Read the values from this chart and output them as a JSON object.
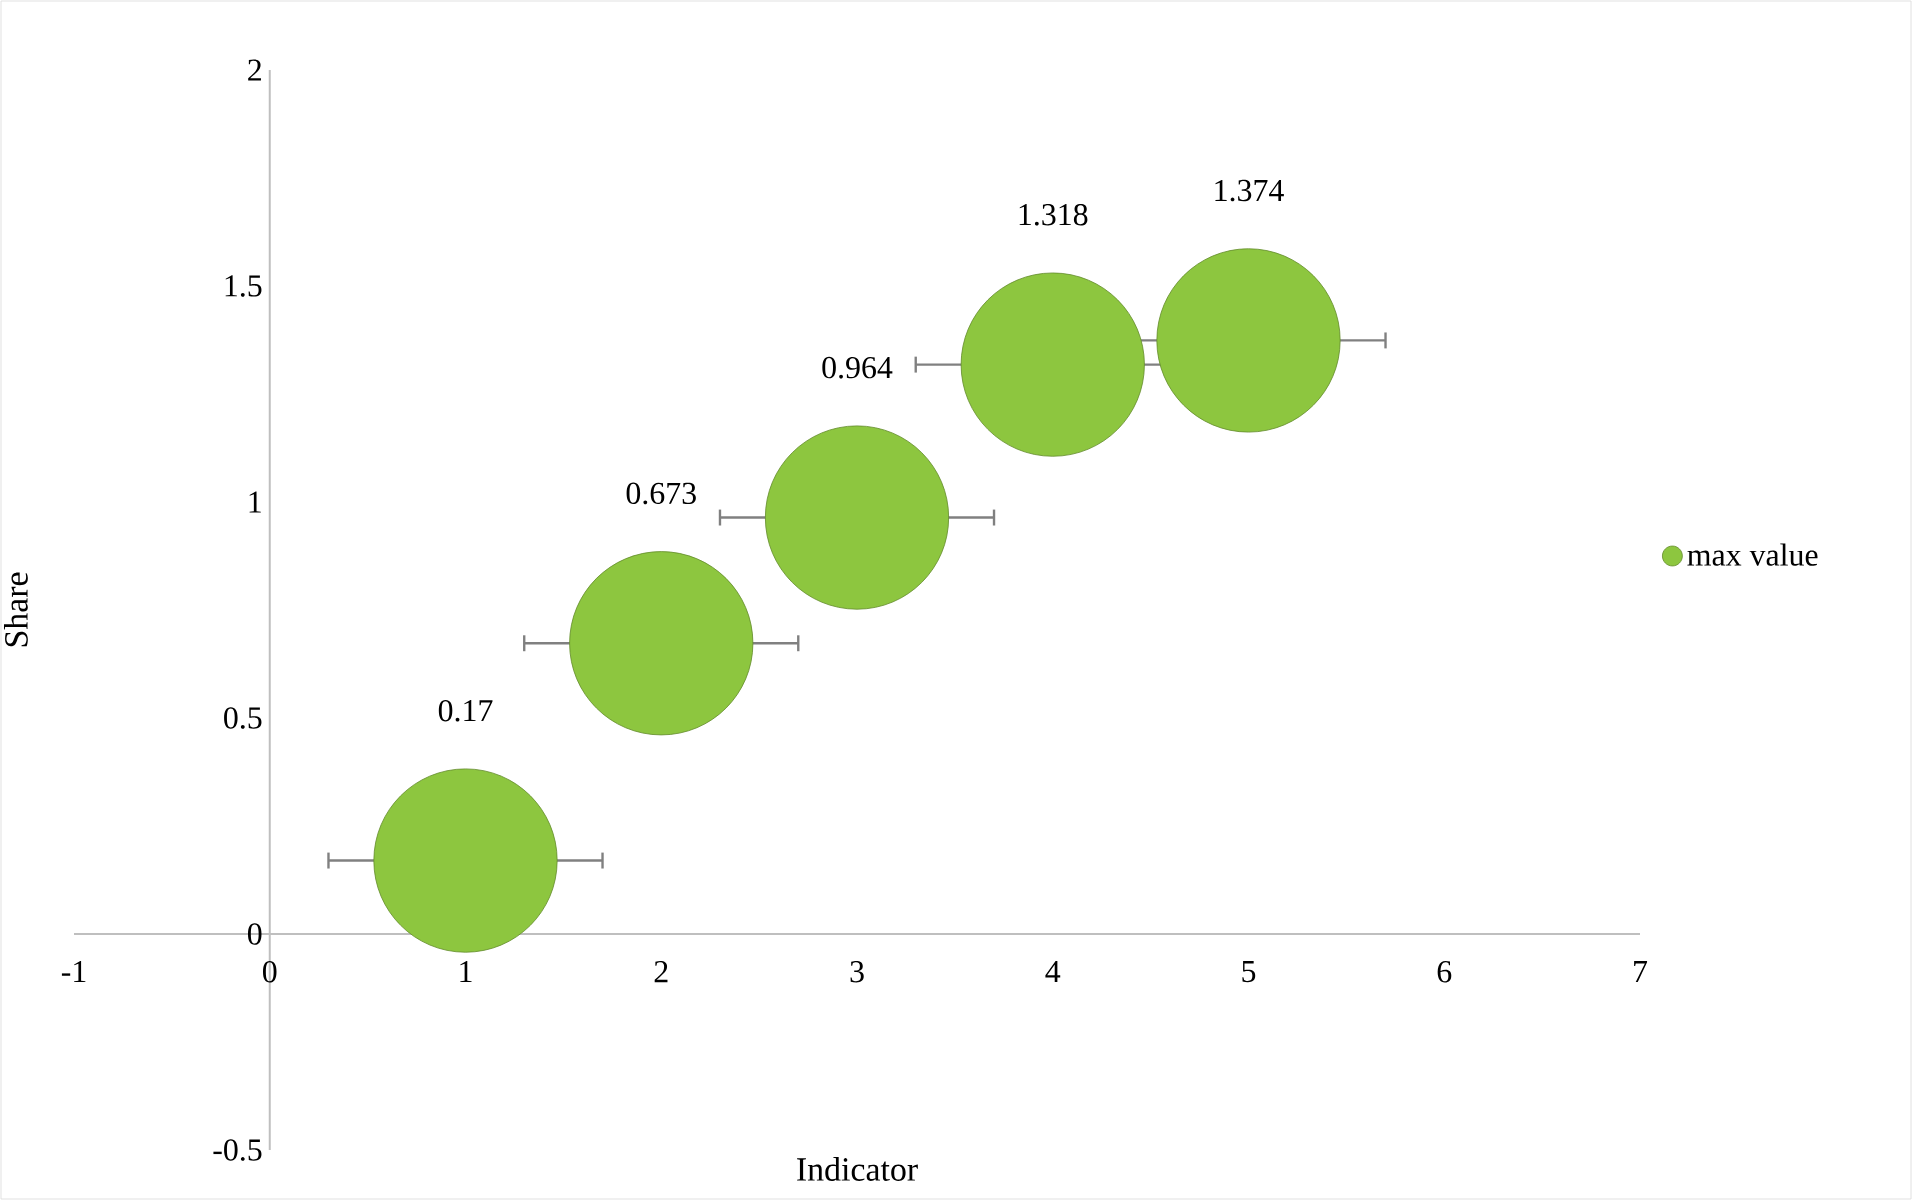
{
  "chart_data": {
    "type": "bubble",
    "xlabel": "Indicator",
    "ylabel": "Share",
    "x": [
      1,
      2,
      3,
      4,
      5
    ],
    "series": [
      {
        "name": "max value",
        "color": "#8dc63f",
        "values": [
          0.17,
          0.673,
          0.964,
          1.318,
          1.374
        ],
        "sizes": [
          1,
          1,
          1,
          1,
          1
        ],
        "xerrors": [
          0.7,
          0.7,
          0.7,
          0.7,
          0.7
        ]
      }
    ],
    "xlim": [
      -1,
      7
    ],
    "ylim": [
      -0.5,
      2
    ],
    "xticks": [
      -1,
      0,
      1,
      2,
      3,
      4,
      5,
      6,
      7
    ],
    "yticks": [
      -0.5,
      0,
      0.5,
      1,
      1.5,
      2
    ],
    "data_labels": true,
    "legend": "right",
    "grid": false
  }
}
